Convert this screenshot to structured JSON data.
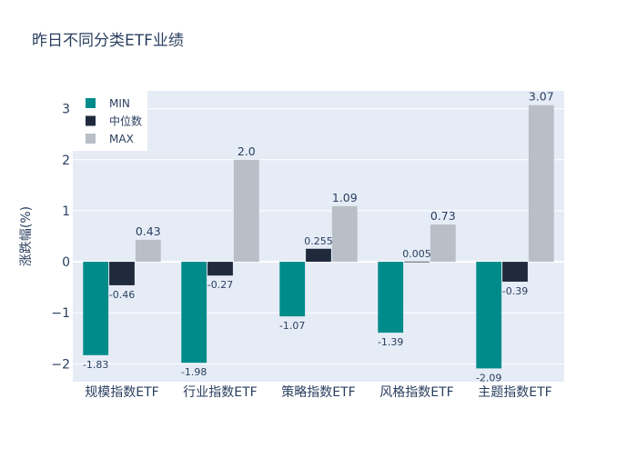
{
  "chart_data": {
    "type": "bar",
    "title": "昨日不同分类ETF业绩",
    "xlabel": "",
    "ylabel": "涨跌幅(%)",
    "categories": [
      "规模指数ETF",
      "行业指数ETF",
      "策略指数ETF",
      "风格指数ETF",
      "主题指数ETF"
    ],
    "series": [
      {
        "name": "MIN",
        "color": "#008b8b",
        "values": [
          -1.83,
          -1.98,
          -1.07,
          -1.39,
          -2.09
        ],
        "labels": [
          "-1.83",
          "-1.98",
          "-1.07",
          "-1.39",
          "-2.09"
        ]
      },
      {
        "name": "中位数",
        "color": "#1f2a3d",
        "values": [
          -0.46,
          -0.27,
          0.255,
          0.005,
          -0.39
        ],
        "labels": [
          "-0.46",
          "-0.27",
          "0.255",
          "0.005",
          "-0.39"
        ]
      },
      {
        "name": "MAX",
        "color": "#b8bfc7",
        "values": [
          0.43,
          2.0,
          1.09,
          0.73,
          3.07
        ],
        "labels": [
          "0.43",
          "2.0",
          "1.09",
          "0.73",
          "3.07"
        ]
      }
    ],
    "ylim": [
      -2.35,
      3.35
    ],
    "yticks": [
      -2,
      -1,
      0,
      1,
      2,
      3
    ],
    "ytick_labels": [
      "−2",
      "−1",
      "0",
      "1",
      "2",
      "3"
    ],
    "grid": true,
    "legend_position": "top-left",
    "plot_background": "#e5ecf6",
    "text_color": "#2a3f5f"
  }
}
